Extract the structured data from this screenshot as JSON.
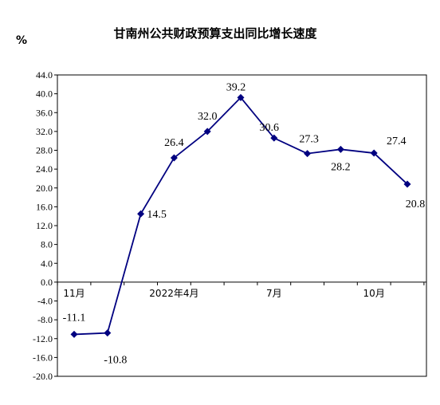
{
  "chart_data": {
    "type": "line",
    "title": "甘南州公共财政预算支出同比增长速度",
    "unit_label": "%",
    "ylim": [
      -20,
      44
    ],
    "yticks": [
      "44.0",
      "40.0",
      "36.0",
      "32.0",
      "28.0",
      "24.0",
      "20.0",
      "16.0",
      "12.0",
      "8.0",
      "4.0",
      "0.0",
      "-4.0",
      "-8.0",
      "-12.0",
      "-16.0",
      "-20.0"
    ],
    "x_tick_labels": [
      {
        "index": 0,
        "label": "11月"
      },
      {
        "index": 3,
        "label": "2022年4月"
      },
      {
        "index": 6,
        "label": "7月"
      },
      {
        "index": 9,
        "label": "10月"
      }
    ],
    "series": [
      {
        "color": "#000080",
        "values": [
          -11.1,
          -10.8,
          14.5,
          26.4,
          32.0,
          39.2,
          30.6,
          27.3,
          28.2,
          27.4,
          20.8
        ],
        "labels": [
          "-11.1",
          "-10.8",
          "14.5",
          "26.4",
          "32.0",
          "39.2",
          "30.6",
          "27.3",
          "28.2",
          "27.4",
          "20.8"
        ]
      }
    ],
    "grid": false,
    "legend": "none"
  }
}
